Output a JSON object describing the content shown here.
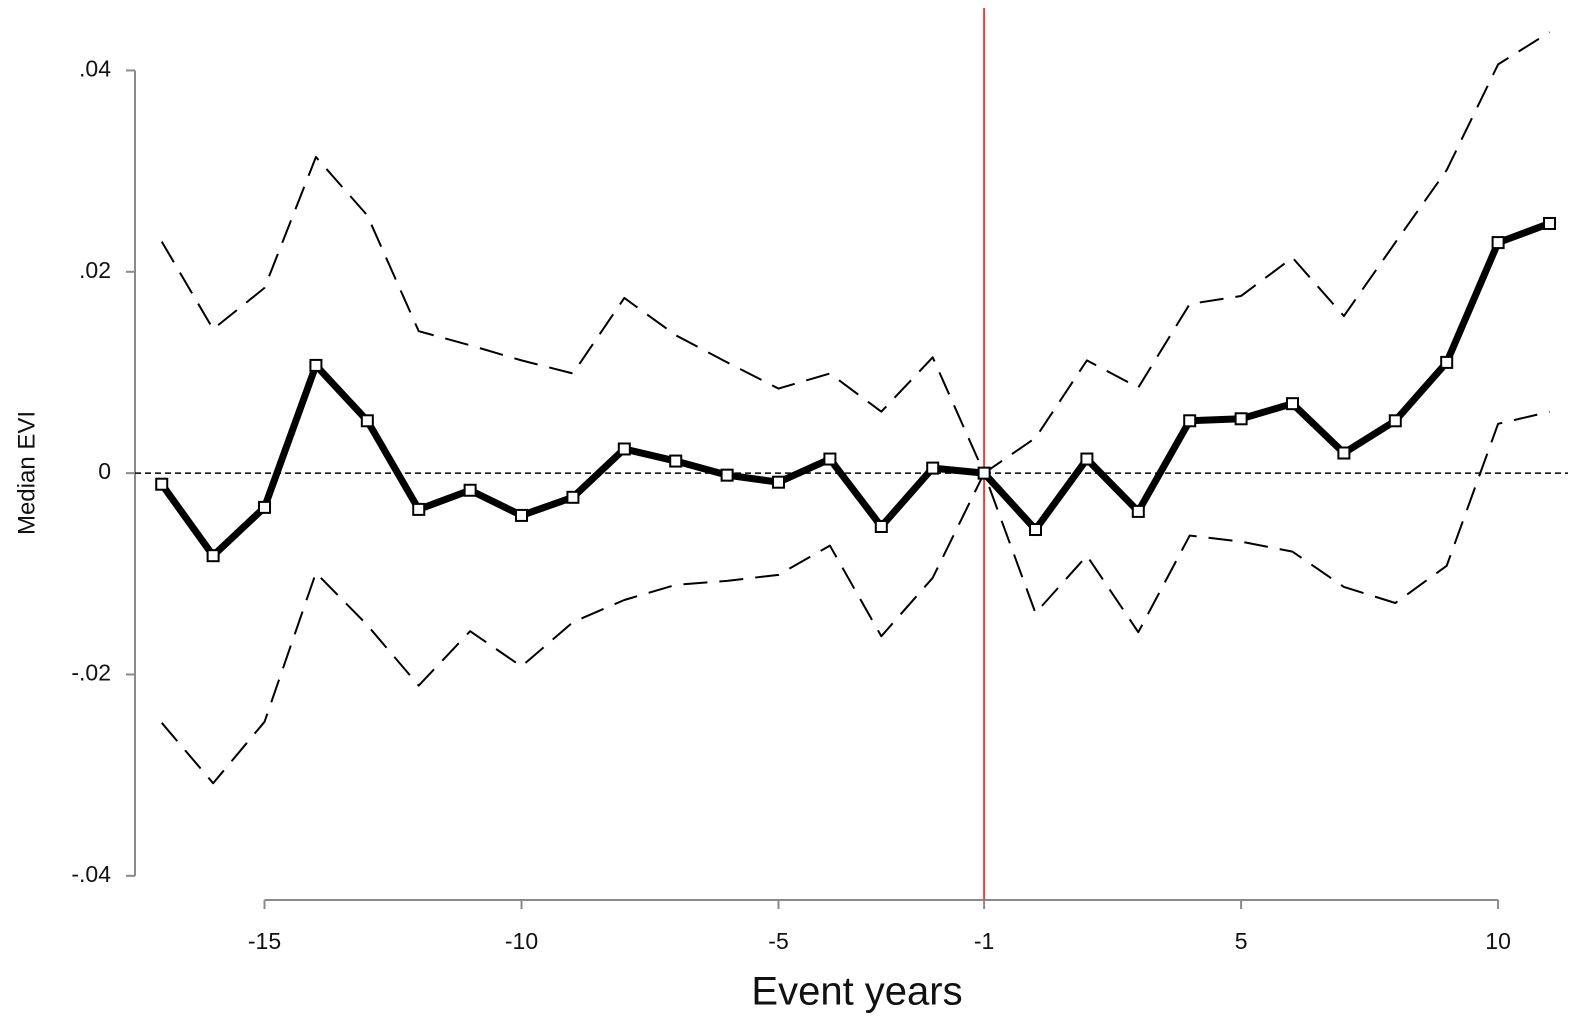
{
  "chart_data": {
    "type": "line",
    "x_label": "Event years",
    "y_label": "Median EVI",
    "x": [
      -16,
      -15,
      -14,
      -13,
      -12,
      -11,
      -10,
      -9,
      -8,
      -7,
      -6,
      -5,
      -4,
      -3,
      -2,
      -1,
      0,
      1,
      2,
      3,
      4,
      5,
      6,
      7,
      8,
      9,
      10,
      11
    ],
    "series": [
      {
        "color": "#000000",
        "style": "solid",
        "markers": true,
        "values": [
          -0.0011,
          -0.0082,
          -0.0034,
          0.0107,
          0.0052,
          -0.0036,
          -0.0017,
          -0.0042,
          -0.0024,
          0.0024,
          0.0012,
          -0.0002,
          -0.0009,
          0.0014,
          -0.0053,
          0.0005,
          0,
          -0.0056,
          0.0014,
          -0.0038,
          0.0052,
          0.0054,
          0.0069,
          0.002,
          0.0052,
          0.011,
          0.0229,
          0.0248
        ]
      },
      {
        "color": "#000000",
        "style": "dashed",
        "markers": false,
        "values": [
          0.023,
          0.0143,
          0.0184,
          0.0314,
          0.0256,
          0.0141,
          0.0127,
          0.0112,
          0.0099,
          0.0174,
          0.0137,
          0.011,
          0.0084,
          0.0099,
          0.0061,
          0.0115,
          0,
          0.0035,
          0.0112,
          0.0085,
          0.0168,
          0.0176,
          0.0214,
          0.0156,
          0.0229,
          0.0301,
          0.0406,
          0.0438
        ]
      },
      {
        "color": "#000000",
        "style": "dashed",
        "markers": false,
        "values": [
          -0.0248,
          -0.0308,
          -0.0247,
          -0.0099,
          -0.0151,
          -0.0211,
          -0.0157,
          -0.0192,
          -0.0148,
          -0.0126,
          -0.0111,
          -0.0107,
          -0.0101,
          -0.0072,
          -0.0162,
          -0.0104,
          0,
          -0.0139,
          -0.0082,
          -0.0158,
          -0.0062,
          -0.0068,
          -0.0078,
          -0.0113,
          -0.0129,
          -0.0092,
          0.0049,
          0.0061
        ]
      }
    ],
    "xlim": [
      -16.52,
      11.36
    ],
    "ylim": [
      -0.0424,
      0.0465
    ],
    "xticks": [
      {
        "value": -14,
        "label": "-15"
      },
      {
        "value": -9,
        "label": "-10"
      },
      {
        "value": -4,
        "label": "-5"
      },
      {
        "value": 0,
        "label": "-1"
      },
      5,
      10
    ],
    "yticks": [
      {
        "value": -0.04,
        "label": "-.04"
      },
      {
        "value": -0.02,
        "label": "-.02"
      },
      0,
      {
        "value": 0.02,
        "label": ".02"
      },
      {
        "value": 0.04,
        "label": ".04"
      }
    ],
    "vline": {
      "value": 0,
      "color": "#e8413c"
    },
    "hline": {
      "value": 0,
      "color": "#000000"
    },
    "grid": false
  }
}
